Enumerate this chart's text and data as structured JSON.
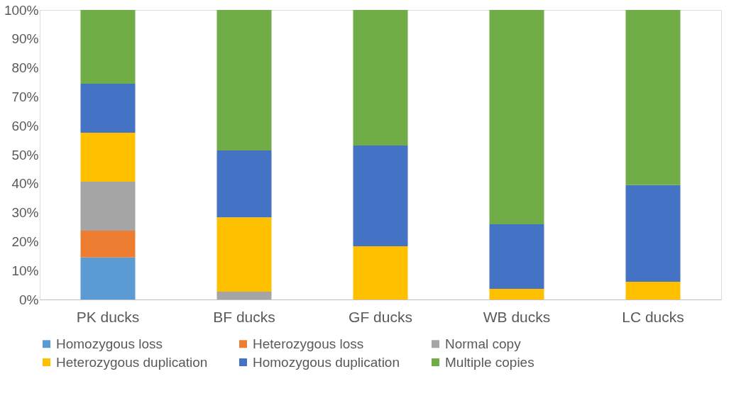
{
  "chart_data": {
    "type": "bar",
    "stacked": true,
    "categories": [
      "PK ducks",
      "BF ducks",
      "GF ducks",
      "WB ducks",
      "LC ducks"
    ],
    "series": [
      {
        "name": "Homozygous loss",
        "color": "#5b9bd5",
        "values": [
          14.5,
          0,
          0,
          0,
          0
        ]
      },
      {
        "name": "Heterozygous loss",
        "color": "#ed7d31",
        "values": [
          9.3,
          0,
          0,
          0,
          0
        ]
      },
      {
        "name": "Normal copy",
        "color": "#a5a5a5",
        "values": [
          16.9,
          2.7,
          0,
          0,
          0
        ]
      },
      {
        "name": "Heterozygous duplication",
        "color": "#ffc000",
        "values": [
          16.9,
          25.7,
          18.4,
          3.7,
          6.1
        ]
      },
      {
        "name": "Homozygous duplication",
        "color": "#4472c4",
        "values": [
          16.9,
          23.1,
          34.8,
          22.3,
          33.4
        ]
      },
      {
        "name": "Multiple copies",
        "color": "#70ad47",
        "values": [
          25.5,
          48.5,
          46.8,
          74.0,
          60.5
        ]
      }
    ],
    "ylim": [
      0,
      100
    ],
    "yticks": [
      {
        "value": 0,
        "label": "0%"
      },
      {
        "value": 10,
        "label": "10%"
      },
      {
        "value": 20,
        "label": "20%"
      },
      {
        "value": 30,
        "label": "30%"
      },
      {
        "value": 40,
        "label": "40%"
      },
      {
        "value": 50,
        "label": "50%"
      },
      {
        "value": 60,
        "label": "60%"
      },
      {
        "value": 70,
        "label": "70%"
      },
      {
        "value": 80,
        "label": "80%"
      },
      {
        "value": 90,
        "label": "90%"
      },
      {
        "value": 100,
        "label": "100%"
      }
    ],
    "grid": false,
    "legend": "bottom"
  }
}
